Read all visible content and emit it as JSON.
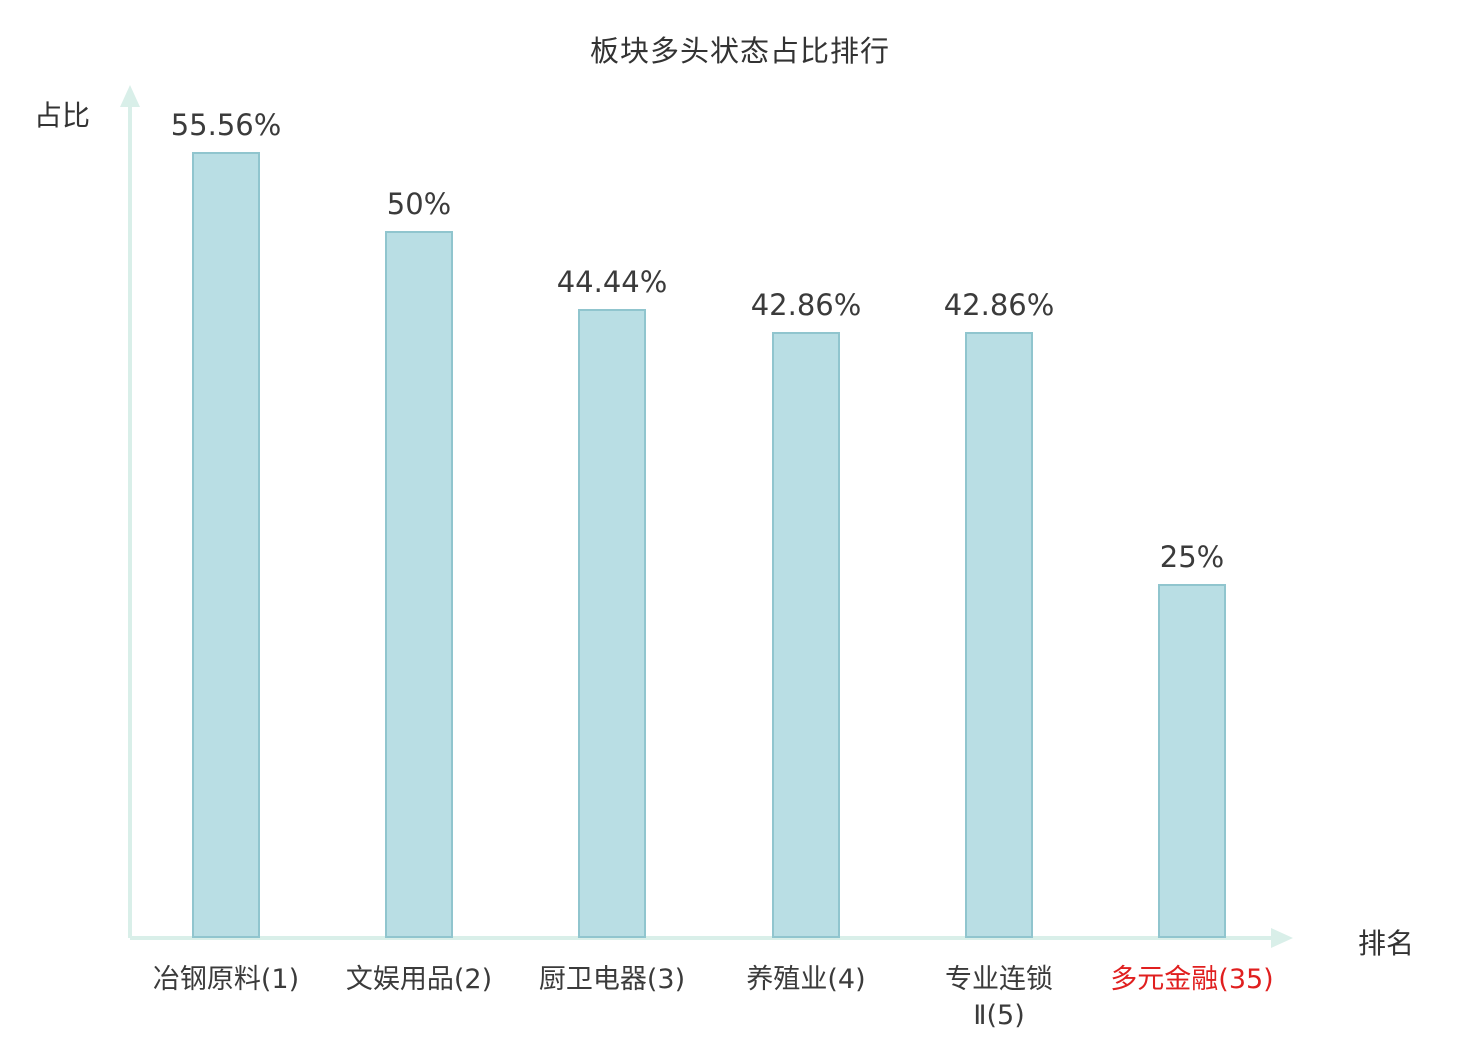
{
  "chart_data": {
    "type": "bar",
    "title": "板块多头状态占比排行",
    "ylabel": "占比",
    "xlabel": "排名",
    "categories": [
      "冶钢原料(1)",
      "文娱用品(2)",
      "厨卫电器(3)",
      "养殖业(4)",
      "专业连锁Ⅱ(5)",
      "多元金融(35)"
    ],
    "category_label_lines": [
      [
        "冶钢原料(1)"
      ],
      [
        "文娱用品(2)"
      ],
      [
        "厨卫电器(3)"
      ],
      [
        "养殖业(4)"
      ],
      [
        "专业连锁",
        "Ⅱ(5)"
      ],
      [
        "多元金融(35)"
      ]
    ],
    "values": [
      55.56,
      50,
      44.44,
      42.86,
      42.86,
      25
    ],
    "value_labels": [
      "55.56%",
      "50%",
      "44.44%",
      "42.86%",
      "42.86%",
      "25%"
    ],
    "highlight_index": 5,
    "ylim": [
      0,
      60
    ],
    "grid": false,
    "legend": false,
    "colors": {
      "bar_fill": "#b9dee4",
      "bar_border": "#90c5ce",
      "axis": "#d9efe9",
      "text": "#3b3b3b",
      "highlight_text": "#e01f1f"
    }
  }
}
